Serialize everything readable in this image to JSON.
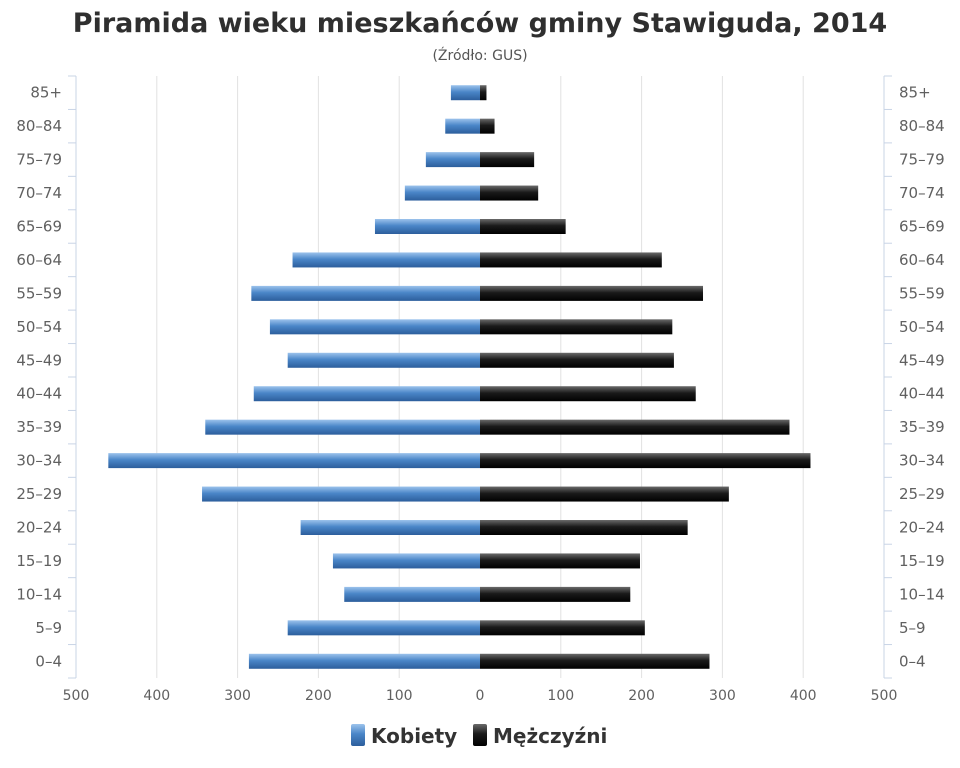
{
  "chart_data": {
    "type": "bar",
    "orientation": "horizontal",
    "title": "Piramida wieku mieszkańców gminy Stawiguda, 2014",
    "subtitle": "(Źródło: GUS)",
    "categories": [
      "85+",
      "80–84",
      "75–79",
      "70–74",
      "65–69",
      "60–64",
      "55–59",
      "50–54",
      "45–49",
      "40–44",
      "35–39",
      "30–34",
      "25–29",
      "20–24",
      "15–19",
      "10–14",
      "5–9",
      "0–4"
    ],
    "series": [
      {
        "name": "Kobiety",
        "side": "left",
        "color": "#4a86c8",
        "values": [
          36,
          43,
          67,
          93,
          130,
          232,
          283,
          260,
          238,
          280,
          340,
          460,
          344,
          222,
          182,
          168,
          238,
          286
        ]
      },
      {
        "name": "Mężczyźni",
        "side": "right",
        "color": "#1a1a1a",
        "values": [
          8,
          18,
          67,
          72,
          106,
          225,
          276,
          238,
          240,
          267,
          383,
          409,
          308,
          257,
          198,
          186,
          204,
          284
        ]
      }
    ],
    "xlim": [
      -500,
      500
    ],
    "x_ticks": [
      {
        "value": -500,
        "label": "500"
      },
      {
        "value": -400,
        "label": "400"
      },
      {
        "value": -300,
        "label": "300"
      },
      {
        "value": -200,
        "label": "200"
      },
      {
        "value": -100,
        "label": "100"
      },
      {
        "value": 0,
        "label": "0"
      },
      {
        "value": 100,
        "label": "100"
      },
      {
        "value": 200,
        "label": "200"
      },
      {
        "value": 300,
        "label": "300"
      },
      {
        "value": 400,
        "label": "400"
      },
      {
        "value": 500,
        "label": "500"
      }
    ],
    "grid": true,
    "legend": "bottom-center"
  }
}
